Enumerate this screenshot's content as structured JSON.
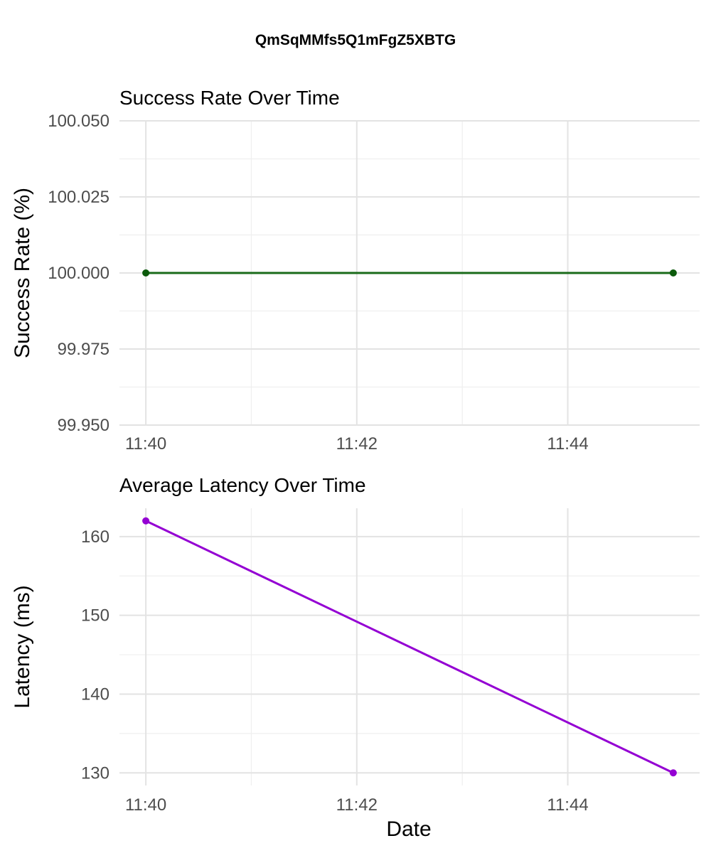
{
  "title": "QmSqMMfs5Q1mFgZ5XBTG",
  "x_axis_title": "Date",
  "chart_data": [
    {
      "type": "line",
      "title": "Success Rate Over Time",
      "xlabel": "",
      "ylabel": "Success Rate (%)",
      "x_ticks": [
        "11:40",
        "11:42",
        "11:44"
      ],
      "x_tick_minutes": [
        0,
        2,
        4
      ],
      "xlim_minutes": [
        -0.25,
        5.25
      ],
      "y_ticks": [
        "100.050",
        "100.025",
        "100.000",
        "99.975",
        "99.950"
      ],
      "ylim": [
        99.95,
        100.05
      ],
      "color": "#1a6b1a",
      "point_color": "#0b5a0b",
      "series": [
        {
          "name": "Success Rate",
          "x": [
            "11:40",
            "11:45"
          ],
          "x_minutes": [
            0,
            5
          ],
          "values": [
            100.0,
            100.0
          ]
        }
      ]
    },
    {
      "type": "line",
      "title": "Average Latency Over Time",
      "xlabel": "Date",
      "ylabel": "Latency (ms)",
      "x_ticks": [
        "11:40",
        "11:42",
        "11:44"
      ],
      "x_tick_minutes": [
        0,
        2,
        4
      ],
      "xlim_minutes": [
        -0.25,
        5.25
      ],
      "y_ticks": [
        "160",
        "150",
        "140",
        "130"
      ],
      "ylim": [
        128.4,
        163.6
      ],
      "color": "#9400d3",
      "point_color": "#9400d3",
      "series": [
        {
          "name": "Average Latency",
          "x": [
            "11:40",
            "11:45"
          ],
          "x_minutes": [
            0,
            5
          ],
          "values": [
            162,
            130
          ]
        }
      ]
    }
  ]
}
